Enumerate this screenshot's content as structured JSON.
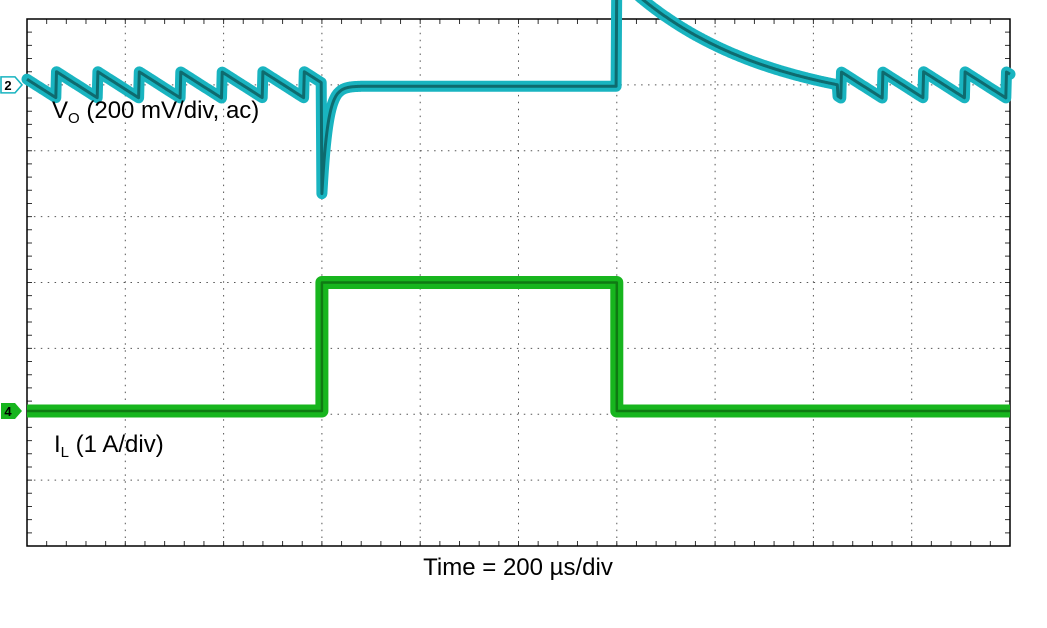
{
  "chart_data": {
    "type": "line",
    "title": "",
    "xlabel": "Time = 200 µs/div",
    "grid": true,
    "grid_divisions": {
      "x": 10,
      "y": 8
    },
    "x_unit": "div",
    "y_unit": "div",
    "xlim": [
      0,
      10
    ],
    "ylim": [
      -4,
      4
    ],
    "series": [
      {
        "name": "VO (200 mV/div, ac)",
        "label_main": "V",
        "label_sub": "O",
        "label_rest": " (200 mV/div, ac)",
        "channel": "2",
        "color": "#19b4c0",
        "color_dark": "#0e6b6f",
        "ripple_period_div": 0.42,
        "ripple_pp_div": 0.4,
        "ripple_start_phase_div": 0.12,
        "shape": {
          "steady_level_div": 3.0,
          "step_on_div": 3.0,
          "undershoot_min_div": 1.35,
          "recovery_tau_div": 0.06,
          "settle_level_div": 2.98,
          "step_off_div": 6.0,
          "overshoot_peak_div": 4.65,
          "decay_end_div": 8.25
        }
      },
      {
        "name": "IL (1 A/div)",
        "label_main": "I",
        "label_sub": "L",
        "label_rest": " (1 A/div)",
        "channel": "4",
        "color": "#17b51e",
        "color_dark": "#0f7a13",
        "x": [
          0,
          3.0,
          3.0,
          6.0,
          6.0,
          10
        ],
        "y": [
          -1.95,
          -1.95,
          0.0,
          0.0,
          -1.95,
          -1.95
        ]
      }
    ]
  }
}
